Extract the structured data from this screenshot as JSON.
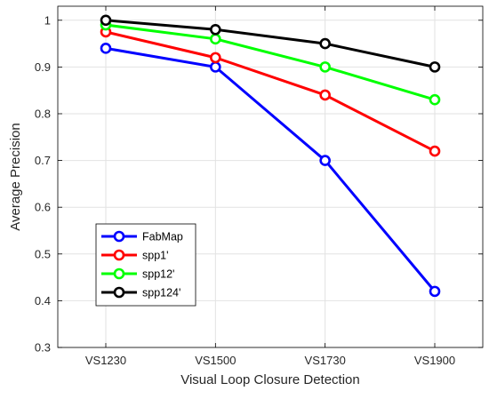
{
  "chart_data": {
    "type": "line",
    "title": "",
    "xlabel": "Visual Loop Closure Detection",
    "ylabel": "Average Precision",
    "categories": [
      "VS1230",
      "VS1500",
      "VS1730",
      "VS1900"
    ],
    "ylim": [
      0.3,
      1.03
    ],
    "yticks": [
      0.3,
      0.4,
      0.5,
      0.6,
      0.7,
      0.8,
      0.9,
      1
    ],
    "ytick_labels": [
      "0.3",
      "0.4",
      "0.5",
      "0.6",
      "0.7",
      "0.8",
      "0.9",
      "1"
    ],
    "grid": true,
    "legend_position": "bottom-left",
    "marker": "open-circle",
    "series": [
      {
        "name": "FabMap",
        "color": "#0000ff",
        "values": [
          0.94,
          0.9,
          0.7,
          0.42
        ]
      },
      {
        "name": "spp1'",
        "color": "#ff0000",
        "values": [
          0.975,
          0.92,
          0.84,
          0.72
        ]
      },
      {
        "name": "spp12'",
        "color": "#00ff00",
        "values": [
          0.99,
          0.96,
          0.9,
          0.83
        ]
      },
      {
        "name": "spp124'",
        "color": "#000000",
        "values": [
          1.0,
          0.98,
          0.95,
          0.9
        ]
      }
    ]
  }
}
